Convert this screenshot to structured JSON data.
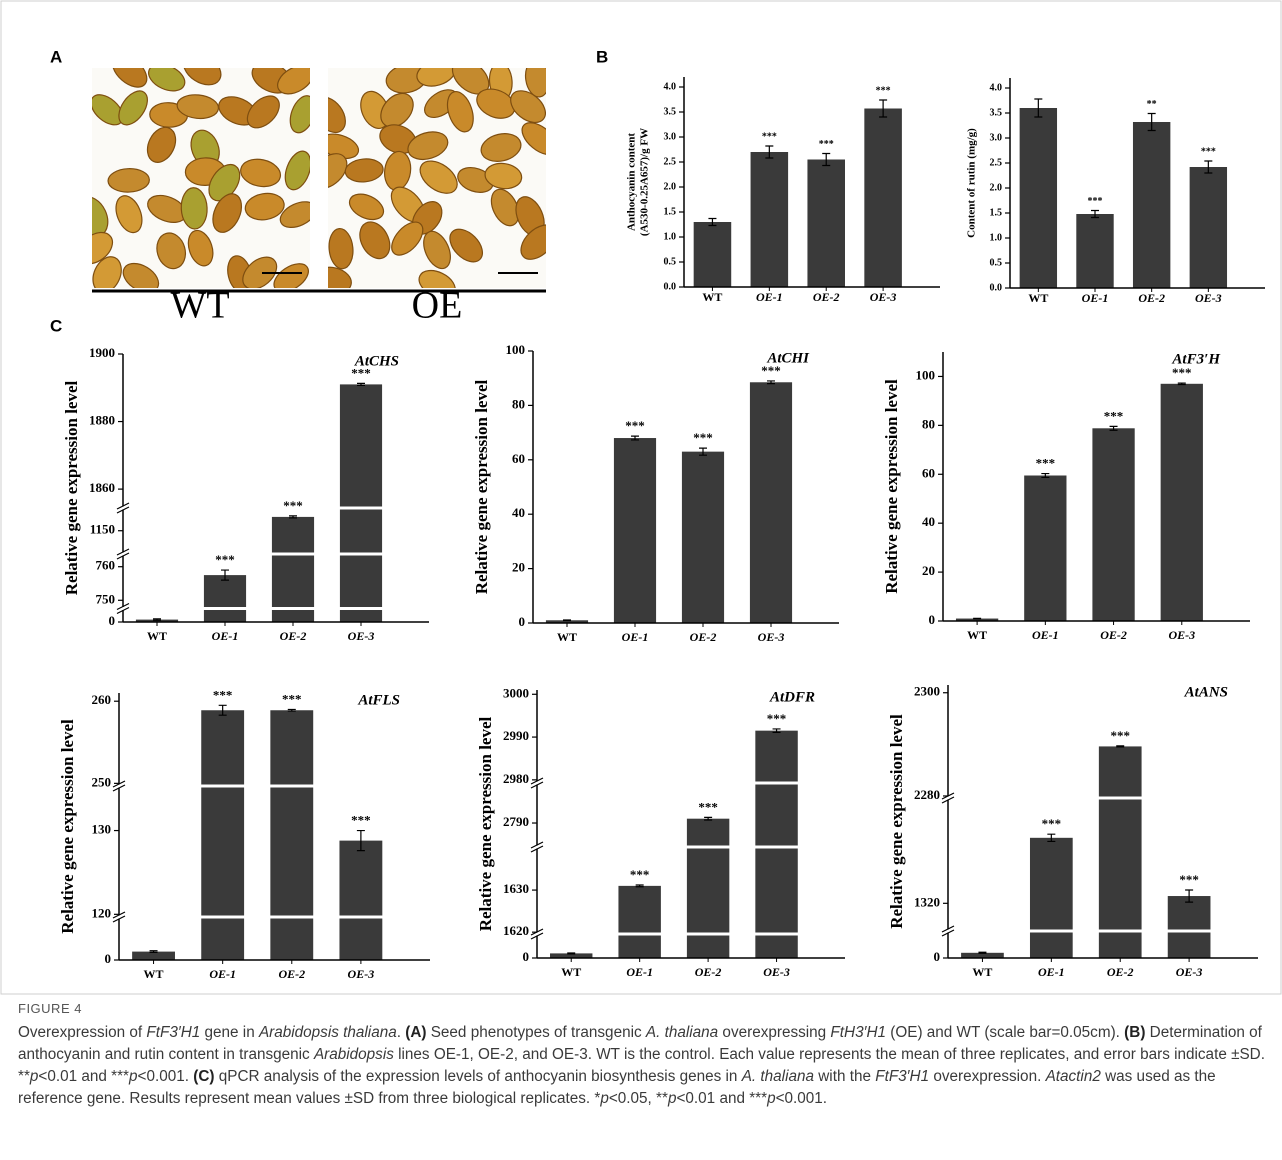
{
  "panel_labels": [
    "A",
    "B",
    "C"
  ],
  "photos": {
    "labels": [
      "WT",
      "OE"
    ]
  },
  "chart_data": [
    {
      "type": "bar",
      "ylabel": [
        "Anthocyanin content",
        "(A530-0.25A657)/g FW"
      ],
      "categories": [
        "WT",
        "OE-1",
        "OE-2",
        "OE-3"
      ],
      "values": [
        1.3,
        2.7,
        2.55,
        3.57
      ],
      "errors": [
        0.07,
        0.12,
        0.12,
        0.17
      ],
      "annotations": [
        null,
        "***",
        "***",
        "***"
      ],
      "color": "#3a3a3a",
      "ylim": [
        0,
        4.2
      ],
      "yticks": [
        {
          "value": 0,
          "label": "0.0"
        },
        {
          "value": 0.5,
          "label": "0.5"
        },
        {
          "value": 1,
          "label": "1.0"
        },
        {
          "value": 1.5,
          "label": "1.5"
        },
        {
          "value": 2,
          "label": "2.0"
        },
        {
          "value": 2.5,
          "label": "2.5"
        },
        {
          "value": 3,
          "label": "3.0"
        },
        {
          "value": 3.5,
          "label": "3.5"
        },
        {
          "value": 4,
          "label": "4.0"
        }
      ]
    },
    {
      "type": "bar",
      "ylabel": [
        "Content of rutin (mg/g)"
      ],
      "categories": [
        "WT",
        "OE-1",
        "OE-2",
        "OE-3"
      ],
      "values": [
        3.6,
        1.48,
        3.32,
        2.42
      ],
      "errors": [
        0.18,
        0.07,
        0.17,
        0.12
      ],
      "annotations": [
        null,
        "***",
        "**",
        "***"
      ],
      "color": "#3a3a3a",
      "ylim": [
        0,
        4.2
      ],
      "yticks": [
        {
          "value": 0,
          "label": "0.0"
        },
        {
          "value": 0.5,
          "label": "0.5"
        },
        {
          "value": 1,
          "label": "1.0"
        },
        {
          "value": 1.5,
          "label": "1.5"
        },
        {
          "value": 2,
          "label": "2.0"
        },
        {
          "value": 2.5,
          "label": "2.5"
        },
        {
          "value": 3,
          "label": "3.0"
        },
        {
          "value": 3.5,
          "label": "3.5"
        },
        {
          "value": 4,
          "label": "4.0"
        }
      ]
    },
    {
      "type": "bar",
      "title": "AtCHS",
      "ylabel": [
        "Relative gene expression level"
      ],
      "categories": [
        "WT",
        "OE-1",
        "OE-2",
        "OE-3"
      ],
      "values": [
        1,
        757.5,
        1154,
        1891
      ],
      "errors": [
        0.3,
        1.5,
        0.3,
        0.3
      ],
      "annotations": [
        null,
        "***",
        "***",
        "***"
      ],
      "color": "#3a3a3a",
      "ylim_segments": [
        [
          0,
          5
        ],
        [
          748,
          762
        ],
        [
          1145,
          1156
        ],
        [
          1855,
          1900
        ]
      ],
      "yticks": [
        0,
        750,
        760,
        1150,
        1860,
        1880,
        1900
      ]
    },
    {
      "type": "bar",
      "title": "AtCHI",
      "ylabel": [
        "Relative gene expression level"
      ],
      "categories": [
        "WT",
        "OE-1",
        "OE-2",
        "OE-3"
      ],
      "values": [
        1,
        68,
        63,
        88.5
      ],
      "errors": [
        0.1,
        0.7,
        1.3,
        0.5
      ],
      "annotations": [
        null,
        "***",
        "***",
        "***"
      ],
      "color": "#3a3a3a",
      "ylim": [
        0,
        100
      ],
      "yticks": [
        0,
        20,
        40,
        60,
        80,
        100
      ]
    },
    {
      "type": "bar",
      "title": "AtF3′H",
      "ylabel": [
        "Relative gene expression level"
      ],
      "categories": [
        "WT",
        "OE-1",
        "OE-2",
        "OE-3"
      ],
      "values": [
        1,
        59.5,
        78.8,
        97
      ],
      "errors": [
        0.1,
        0.8,
        0.8,
        0.3
      ],
      "annotations": [
        null,
        "***",
        "***",
        "***"
      ],
      "color": "#3a3a3a",
      "ylim": [
        0,
        110
      ],
      "yticks": [
        0,
        20,
        40,
        60,
        80,
        100
      ]
    },
    {
      "type": "bar",
      "title": "AtFLS",
      "ylabel": [
        "Relative gene expression level"
      ],
      "categories": [
        "WT",
        "OE-1",
        "OE-2",
        "OE-3"
      ],
      "values": [
        1,
        258.9,
        258.9,
        128.8
      ],
      "errors": [
        0.1,
        0.6,
        0.1,
        1.2
      ],
      "annotations": [
        null,
        "***",
        "***",
        "***"
      ],
      "color": "#3a3a3a",
      "ylim_segments": [
        [
          0,
          5
        ],
        [
          119.8,
          135.2
        ],
        [
          249.8,
          261
        ]
      ],
      "yticks": [
        0,
        120,
        130,
        250,
        260
      ]
    },
    {
      "type": "bar",
      "title": "AtDFR",
      "ylabel": [
        "Relative gene expression level"
      ],
      "categories": [
        "WT",
        "OE-1",
        "OE-2",
        "OE-3"
      ],
      "values": [
        1,
        1631,
        2791,
        2991.5
      ],
      "errors": [
        0.1,
        0.2,
        0.3,
        0.4
      ],
      "annotations": [
        null,
        "***",
        "***",
        "***"
      ],
      "color": "#3a3a3a",
      "ylim_segments": [
        [
          0,
          5
        ],
        [
          1619.8,
          1640
        ],
        [
          2784.7,
          2799
        ],
        [
          2979.5,
          3001
        ]
      ],
      "yticks": [
        0,
        1620,
        1630,
        2790,
        2980,
        2990,
        3000
      ]
    },
    {
      "type": "bar",
      "title": "AtANS",
      "ylabel": [
        "Relative gene expression level"
      ],
      "categories": [
        "WT",
        "OE-1",
        "OE-2",
        "OE-3"
      ],
      "values": [
        1,
        1347,
        2289.6,
        1323
      ],
      "errors": [
        0.1,
        1.5,
        0.1,
        2.5
      ],
      "annotations": [
        null,
        "***",
        "***",
        "***"
      ],
      "color": "#3a3a3a",
      "ylim_segments": [
        [
          0,
          5
        ],
        [
          1309,
          1363
        ],
        [
          2279.8,
          2301.5
        ]
      ],
      "yticks": [
        0,
        1320,
        2280,
        2300
      ]
    }
  ],
  "caption": {
    "label": "FIGURE 4",
    "runs": [
      {
        "text": "Overexpression of "
      },
      {
        "text": "FtF3′H1",
        "style": "italic"
      },
      {
        "text": " gene in "
      },
      {
        "text": "Arabidopsis thaliana",
        "style": "italic"
      },
      {
        "text": ". "
      },
      {
        "text": "(A)",
        "style": "bold"
      },
      {
        "text": " Seed phenotypes of transgenic "
      },
      {
        "text": "A. thaliana",
        "style": "italic"
      },
      {
        "text": " overexpressing "
      },
      {
        "text": "FtH3′H1",
        "style": "italic"
      },
      {
        "text": " (OE) and WT (scale bar=0.05cm). "
      },
      {
        "text": "(B)",
        "style": "bold"
      },
      {
        "text": " Determination of anthocyanin and rutin content in transgenic "
      },
      {
        "text": "Arabidopsis",
        "style": "italic"
      },
      {
        "text": " lines OE-1, OE-2, and OE-3. WT is the control. Each value represents the mean of three replicates, and error bars indicate ±SD. **"
      },
      {
        "text": "p",
        "style": "italic"
      },
      {
        "text": "<0.01 and ***"
      },
      {
        "text": "p",
        "style": "italic"
      },
      {
        "text": "<0.001. "
      },
      {
        "text": "(C)",
        "style": "bold"
      },
      {
        "text": " qPCR analysis of the expression levels of anthocyanin biosynthesis genes in "
      },
      {
        "text": "A. thaliana",
        "style": "italic"
      },
      {
        "text": " with the "
      },
      {
        "text": "FtF3′H1",
        "style": "italic"
      },
      {
        "text": " overexpression. "
      },
      {
        "text": "Atactin2",
        "style": "italic"
      },
      {
        "text": " was used as the reference gene. Results represent mean values ±SD from three biological replicates. *"
      },
      {
        "text": "p",
        "style": "italic"
      },
      {
        "text": "<0.05, **"
      },
      {
        "text": "p",
        "style": "italic"
      },
      {
        "text": "<0.01 and ***"
      },
      {
        "text": "p",
        "style": "italic"
      },
      {
        "text": "<0.001."
      }
    ]
  }
}
